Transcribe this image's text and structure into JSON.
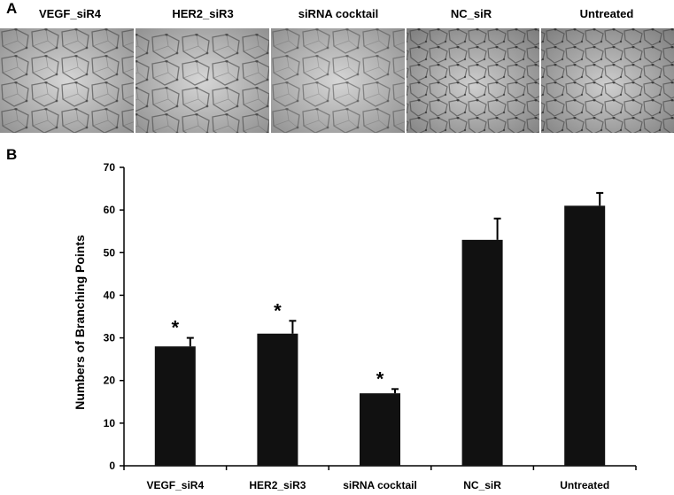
{
  "panel_a": {
    "letter": "A",
    "images": [
      "VEGF_siR4",
      "HER2_siR3",
      "siRNA cocktail",
      "NC_siR",
      "Untreated"
    ]
  },
  "panel_b": {
    "letter": "B"
  },
  "chart_data": {
    "type": "bar",
    "categories": [
      "VEGF_siR4",
      "HER2_siR3",
      "siRNA cocktail",
      "NC_siR",
      "Untreated"
    ],
    "values": [
      28,
      31,
      17,
      53,
      61
    ],
    "errors": [
      2,
      3,
      1,
      5,
      3
    ],
    "significance": [
      "*",
      "*",
      "*",
      "",
      ""
    ],
    "xlabel": "",
    "ylabel": "Numbers of Branching Points",
    "ylim": [
      0,
      70
    ],
    "yticks": [
      0,
      10,
      20,
      30,
      40,
      50,
      60,
      70
    ],
    "bar_color": "#111111",
    "grid": false,
    "legend": "none"
  }
}
